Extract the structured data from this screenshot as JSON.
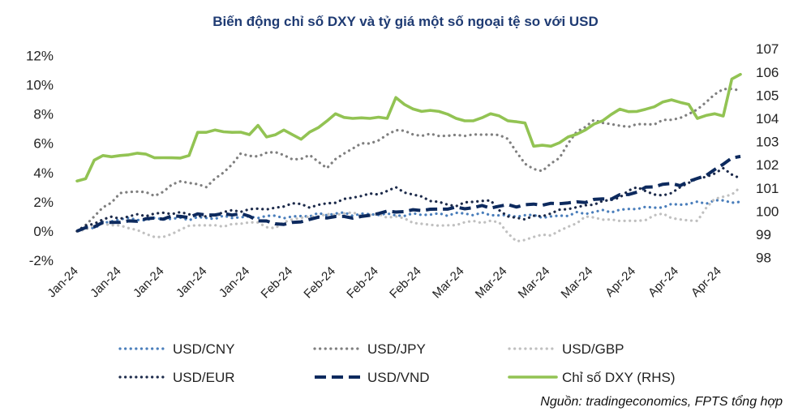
{
  "chart_data": {
    "type": "line",
    "title": "Biến động chỉ số DXY và tỷ giá một số ngoại tệ so với USD",
    "source": "Nguồn: tradingeconomics, FPTS tổng hợp",
    "x_tick_labels": [
      "Jan-24",
      "Jan-24",
      "Jan-24",
      "Jan-24",
      "Jan-24",
      "Feb-24",
      "Feb-24",
      "Feb-24",
      "Feb-24",
      "Mar-24",
      "Mar-24",
      "Mar-24",
      "Mar-24",
      "Apr-24",
      "Apr-24",
      "Apr-24"
    ],
    "y_left": {
      "min": -2,
      "max": 12,
      "step": 2,
      "tick_labels": [
        "-2%",
        "0%",
        "2%",
        "4%",
        "6%",
        "8%",
        "10%",
        "12%"
      ]
    },
    "y_right": {
      "min": 98,
      "max": 107,
      "step": 1,
      "tick_labels": [
        "98",
        "99",
        "100",
        "101",
        "102",
        "103",
        "104",
        "105",
        "106",
        "107"
      ]
    },
    "n_points": 78,
    "series": [
      {
        "name": "USD/CNY",
        "axis": "left",
        "color": "#4a7ebb",
        "dash": "dot",
        "anchors": [
          [
            0,
            0
          ],
          [
            5,
            0.8
          ],
          [
            10,
            0.8
          ],
          [
            15,
            0.9
          ],
          [
            20,
            1.0
          ],
          [
            25,
            1.0
          ],
          [
            30,
            1.2
          ],
          [
            35,
            1.1
          ],
          [
            40,
            1.1
          ],
          [
            45,
            1.2
          ],
          [
            50,
            1.1
          ],
          [
            55,
            1.0
          ],
          [
            60,
            1.3
          ],
          [
            65,
            1.5
          ],
          [
            70,
            1.8
          ],
          [
            75,
            2.1
          ],
          [
            77,
            2.0
          ]
        ]
      },
      {
        "name": "USD/JPY",
        "axis": "left",
        "color": "#7f7f7f",
        "dash": "dot",
        "anchors": [
          [
            0,
            0
          ],
          [
            2,
            1.0
          ],
          [
            5,
            2.6
          ],
          [
            7,
            2.7
          ],
          [
            9,
            2.4
          ],
          [
            12,
            3.4
          ],
          [
            15,
            3.0
          ],
          [
            17,
            4.0
          ],
          [
            19,
            5.3
          ],
          [
            21,
            5.1
          ],
          [
            23,
            5.4
          ],
          [
            25,
            4.9
          ],
          [
            27,
            5.2
          ],
          [
            29,
            4.3
          ],
          [
            31,
            5.3
          ],
          [
            33,
            6.0
          ],
          [
            35,
            6.2
          ],
          [
            37,
            6.9
          ],
          [
            39,
            6.6
          ],
          [
            42,
            6.5
          ],
          [
            45,
            6.5
          ],
          [
            48,
            6.6
          ],
          [
            50,
            6.3
          ],
          [
            52,
            4.6
          ],
          [
            54,
            4.1
          ],
          [
            56,
            5.0
          ],
          [
            58,
            6.8
          ],
          [
            60,
            7.6
          ],
          [
            63,
            7.2
          ],
          [
            66,
            7.3
          ],
          [
            69,
            7.6
          ],
          [
            71,
            8.0
          ],
          [
            73,
            8.8
          ],
          [
            75,
            9.7
          ],
          [
            77,
            9.6
          ]
        ]
      },
      {
        "name": "USD/GBP",
        "axis": "left",
        "color": "#c0c0c0",
        "dash": "dot",
        "anchors": [
          [
            0,
            0
          ],
          [
            3,
            0.5
          ],
          [
            6,
            0.2
          ],
          [
            8,
            -0.2
          ],
          [
            10,
            -0.4
          ],
          [
            12,
            0.1
          ],
          [
            14,
            0.4
          ],
          [
            17,
            0.3
          ],
          [
            20,
            0.6
          ],
          [
            23,
            0.2
          ],
          [
            25,
            0.8
          ],
          [
            28,
            1.0
          ],
          [
            31,
            1.2
          ],
          [
            34,
            1.1
          ],
          [
            37,
            1.0
          ],
          [
            40,
            0.5
          ],
          [
            43,
            0.4
          ],
          [
            46,
            0.7
          ],
          [
            49,
            0.6
          ],
          [
            51,
            -0.7
          ],
          [
            53,
            -0.4
          ],
          [
            55,
            -0.3
          ],
          [
            57,
            0.3
          ],
          [
            59,
            1.0
          ],
          [
            62,
            0.8
          ],
          [
            65,
            0.7
          ],
          [
            68,
            1.2
          ],
          [
            70,
            0.8
          ],
          [
            72,
            0.7
          ],
          [
            74,
            2.2
          ],
          [
            76,
            2.5
          ],
          [
            77,
            3.0
          ]
        ]
      },
      {
        "name": "USD/EUR",
        "axis": "left",
        "color": "#1c2a4a",
        "dash": "dot",
        "anchors": [
          [
            0,
            0
          ],
          [
            3,
            0.8
          ],
          [
            6,
            1.0
          ],
          [
            9,
            1.2
          ],
          [
            12,
            1.3
          ],
          [
            15,
            1.0
          ],
          [
            17,
            1.3
          ],
          [
            20,
            1.5
          ],
          [
            23,
            1.6
          ],
          [
            25,
            1.9
          ],
          [
            27,
            1.6
          ],
          [
            29,
            1.9
          ],
          [
            31,
            2.2
          ],
          [
            33,
            2.4
          ],
          [
            35,
            2.5
          ],
          [
            37,
            3.0
          ],
          [
            39,
            2.5
          ],
          [
            42,
            2.0
          ],
          [
            44,
            1.7
          ],
          [
            46,
            2.0
          ],
          [
            48,
            2.1
          ],
          [
            50,
            1.0
          ],
          [
            52,
            0.8
          ],
          [
            55,
            1.2
          ],
          [
            57,
            1.5
          ],
          [
            60,
            1.8
          ],
          [
            63,
            2.3
          ],
          [
            65,
            3.0
          ],
          [
            67,
            2.5
          ],
          [
            69,
            2.6
          ],
          [
            71,
            3.3
          ],
          [
            73,
            3.7
          ],
          [
            75,
            4.3
          ],
          [
            77,
            3.6
          ]
        ]
      },
      {
        "name": "USD/VND",
        "axis": "left",
        "color": "#0d2a5e",
        "dash": "dash",
        "anchors": [
          [
            0,
            0
          ],
          [
            3,
            0.6
          ],
          [
            6,
            0.7
          ],
          [
            9,
            0.9
          ],
          [
            12,
            1.0
          ],
          [
            15,
            1.1
          ],
          [
            17,
            1.2
          ],
          [
            19,
            1.2
          ],
          [
            21,
            0.7
          ],
          [
            23,
            0.5
          ],
          [
            25,
            0.6
          ],
          [
            27,
            0.8
          ],
          [
            29,
            0.9
          ],
          [
            31,
            1.0
          ],
          [
            33,
            1.0
          ],
          [
            35,
            1.2
          ],
          [
            37,
            1.3
          ],
          [
            40,
            1.4
          ],
          [
            43,
            1.5
          ],
          [
            46,
            1.6
          ],
          [
            49,
            1.7
          ],
          [
            52,
            1.8
          ],
          [
            55,
            1.9
          ],
          [
            58,
            2.0
          ],
          [
            61,
            2.2
          ],
          [
            64,
            2.5
          ],
          [
            66,
            3.0
          ],
          [
            68,
            3.2
          ],
          [
            70,
            3.1
          ],
          [
            72,
            3.6
          ],
          [
            74,
            4.2
          ],
          [
            76,
            5.0
          ],
          [
            77,
            5.1
          ]
        ]
      },
      {
        "name": "Chỉ số DXY (RHS)",
        "axis": "right",
        "color": "#92c353",
        "dash": "solid",
        "anchors": [
          [
            0,
            101.3
          ],
          [
            1,
            101.4
          ],
          [
            2,
            102.2
          ],
          [
            3,
            102.4
          ],
          [
            5,
            102.4
          ],
          [
            7,
            102.5
          ],
          [
            9,
            102.3
          ],
          [
            11,
            102.3
          ],
          [
            13,
            102.4
          ],
          [
            14,
            103.4
          ],
          [
            16,
            103.5
          ],
          [
            18,
            103.4
          ],
          [
            20,
            103.3
          ],
          [
            21,
            103.7
          ],
          [
            22,
            103.2
          ],
          [
            24,
            103.5
          ],
          [
            26,
            103.1
          ],
          [
            28,
            103.6
          ],
          [
            30,
            104.2
          ],
          [
            32,
            104.0
          ],
          [
            34,
            104.0
          ],
          [
            36,
            104.0
          ],
          [
            37,
            104.9
          ],
          [
            38,
            104.6
          ],
          [
            40,
            104.3
          ],
          [
            42,
            104.3
          ],
          [
            44,
            104.0
          ],
          [
            46,
            103.9
          ],
          [
            48,
            104.2
          ],
          [
            50,
            103.9
          ],
          [
            52,
            103.8
          ],
          [
            53,
            102.8
          ],
          [
            55,
            102.8
          ],
          [
            57,
            103.2
          ],
          [
            59,
            103.5
          ],
          [
            61,
            103.9
          ],
          [
            63,
            104.4
          ],
          [
            65,
            104.3
          ],
          [
            67,
            104.5
          ],
          [
            69,
            104.8
          ],
          [
            71,
            104.6
          ],
          [
            72,
            104.0
          ],
          [
            74,
            104.2
          ],
          [
            75,
            104.1
          ],
          [
            76,
            105.7
          ],
          [
            77,
            105.9
          ]
        ]
      }
    ]
  }
}
